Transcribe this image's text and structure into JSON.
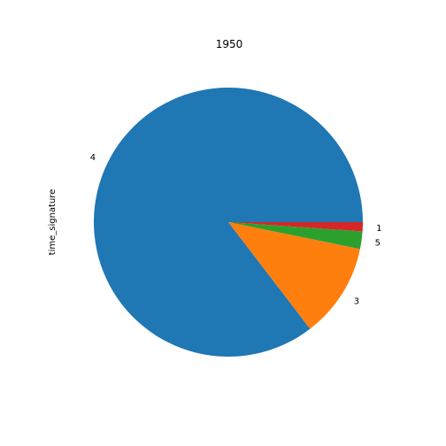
{
  "chart_data": {
    "type": "pie",
    "title": "1950",
    "ylabel": "time_signature",
    "slices": [
      {
        "label": "4",
        "value": 85.4,
        "color": "#1f77b4"
      },
      {
        "label": "3",
        "value": 11.4,
        "color": "#ff7f0e"
      },
      {
        "label": "5",
        "value": 2.1,
        "color": "#2ca02c"
      },
      {
        "label": "1",
        "value": 1.1,
        "color": "#d62728"
      }
    ]
  }
}
